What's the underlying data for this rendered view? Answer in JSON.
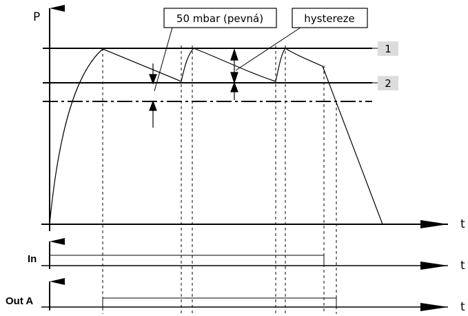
{
  "axes": {
    "pressure_label": "P",
    "time_label": "t",
    "input_label": "In",
    "output_label": "Out A"
  },
  "callouts": {
    "fixed_hysteresis": "50 mbar (pevná)",
    "hysteresis": "hystereze"
  },
  "levels": {
    "level_1": "1",
    "level_2": "2"
  },
  "colors": {
    "line": "#000000",
    "tag_bg": "#dcdcdc"
  }
}
